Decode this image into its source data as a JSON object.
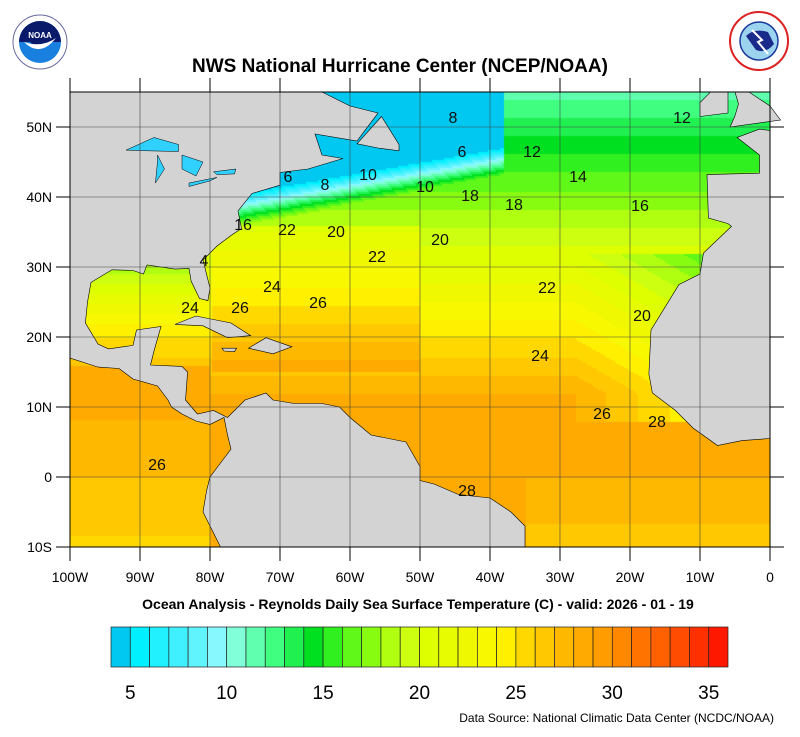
{
  "header": {
    "title": "NWS National Hurricane Center (NCEP/NOAA)",
    "left_logo": {
      "icon": "noaa-logo",
      "text": "NOAA"
    },
    "right_logo": {
      "icon": "nws-logo",
      "text": "NATIONAL WEATHER SERVICE"
    }
  },
  "map": {
    "lon_labels": [
      "100W",
      "90W",
      "80W",
      "70W",
      "60W",
      "50W",
      "40W",
      "30W",
      "20W",
      "10W",
      "0"
    ],
    "lat_labels": [
      "50N",
      "40N",
      "30N",
      "20N",
      "10N",
      "0",
      "10S"
    ],
    "lon_range": [
      -100,
      0
    ],
    "lat_range": [
      -10,
      55
    ],
    "land_color": "#d3d3d3",
    "contour_labels": [
      "12",
      "8",
      "6",
      "12",
      "14",
      "6",
      "8",
      "10",
      "10",
      "18",
      "18",
      "16",
      "4",
      "16",
      "22",
      "20",
      "20",
      "22",
      "24",
      "22",
      "26",
      "24",
      "26",
      "20",
      "24",
      "26",
      "28",
      "26",
      "28"
    ]
  },
  "subtitle": "Ocean Analysis - Reynolds Daily Sea Surface Temperature (C) - valid: 2026 - 01 - 19",
  "colorbar": {
    "min": 4,
    "max": 36,
    "step": 1,
    "tick_labels": [
      "5",
      "10",
      "15",
      "20",
      "25",
      "30",
      "35"
    ],
    "tick_values": [
      5,
      10,
      15,
      20,
      25,
      30,
      35
    ],
    "colors": [
      "#00c8f0",
      "#00f0ff",
      "#20f0ff",
      "#40f0ff",
      "#60f4ff",
      "#88f8ff",
      "#80ffd8",
      "#60ffb0",
      "#40ff80",
      "#20f050",
      "#00e020",
      "#30f020",
      "#60f818",
      "#88fc10",
      "#b0ff10",
      "#ccff10",
      "#ddff00",
      "#e8fc00",
      "#f0f800",
      "#f8f800",
      "#fff000",
      "#ffd800",
      "#ffc800",
      "#ffb800",
      "#ffaa00",
      "#ff9c00",
      "#ff8800",
      "#ff7400",
      "#ff6000",
      "#ff4c00",
      "#ff3000",
      "#ff1800"
    ]
  },
  "source": "Data Source: National Climatic Data Center (NCDC/NOAA)"
}
